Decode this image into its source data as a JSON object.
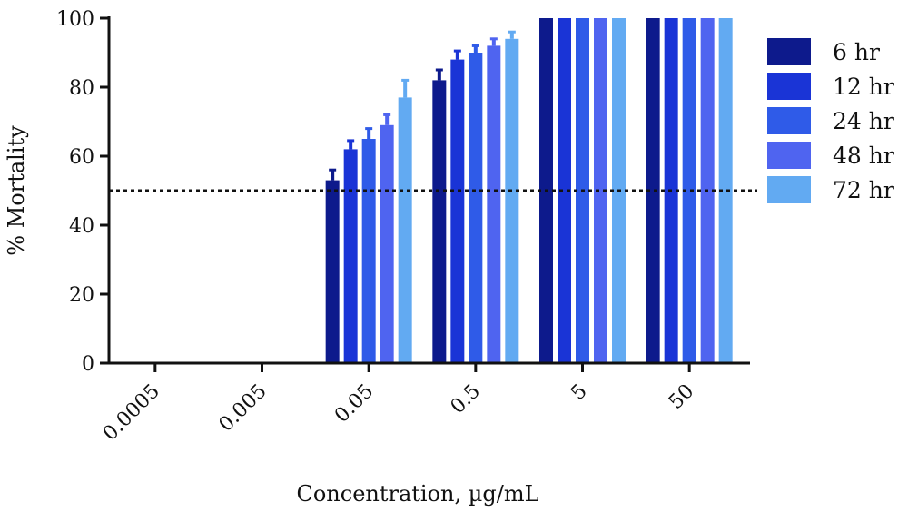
{
  "chart_data": {
    "type": "bar",
    "title": "",
    "xlabel": "Concentration, µg/mL",
    "ylabel": "% Mortality",
    "ylim": [
      0,
      100
    ],
    "yticks": [
      "0",
      "20",
      "40",
      "60",
      "80",
      "100"
    ],
    "categories": [
      "0.0005",
      "0.005",
      "0.05",
      "0.5",
      "5",
      "50"
    ],
    "reference_line": {
      "y": 50,
      "style": "dotted"
    },
    "legend_position": "right",
    "series": [
      {
        "name": "6 hr",
        "color": "#0d1a8c",
        "values": [
          0,
          0,
          53,
          82,
          100,
          100
        ],
        "errors": [
          0,
          0,
          3,
          3,
          0,
          0
        ]
      },
      {
        "name": "12 hr",
        "color": "#1a34d6",
        "values": [
          0,
          0,
          62,
          88,
          100,
          100
        ],
        "errors": [
          0,
          0,
          2.5,
          2.5,
          0,
          0
        ]
      },
      {
        "name": "24 hr",
        "color": "#2f5be8",
        "values": [
          0,
          0,
          65,
          90,
          100,
          100
        ],
        "errors": [
          0,
          0,
          3,
          2,
          0,
          0
        ]
      },
      {
        "name": "48 hr",
        "color": "#4f64f0",
        "values": [
          0,
          0,
          69,
          92,
          100,
          100
        ],
        "errors": [
          0,
          0,
          3,
          2,
          0,
          0
        ]
      },
      {
        "name": "72 hr",
        "color": "#62aaf2",
        "values": [
          0,
          0,
          77,
          94,
          100,
          100
        ],
        "errors": [
          0,
          0,
          5,
          2,
          0,
          0
        ]
      }
    ]
  }
}
